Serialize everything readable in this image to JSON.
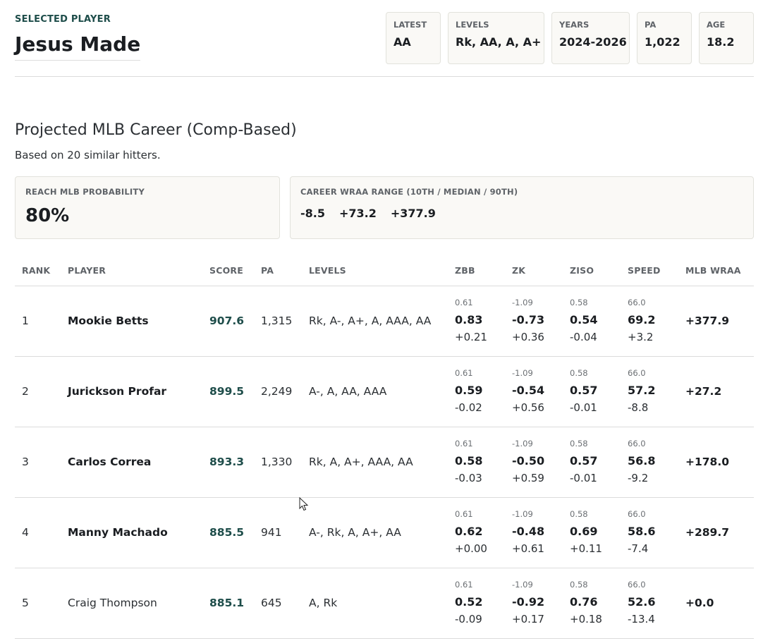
{
  "header": {
    "selected_label": "SELECTED PLAYER",
    "player_name": "Jesus Made",
    "stats": [
      {
        "key": "LATEST",
        "value": "AA"
      },
      {
        "key": "LEVELS",
        "value": "Rk, AA, A, A+"
      },
      {
        "key": "YEARS",
        "value": "2024-2026"
      },
      {
        "key": "PA",
        "value": "1,022"
      },
      {
        "key": "AGE",
        "value": "18.2"
      }
    ]
  },
  "projection": {
    "title": "Projected MLB Career (Comp-Based)",
    "subtitle": "Based on 20 similar hitters.",
    "reach_label": "REACH MLB PROBABILITY",
    "reach_value": "80%",
    "range_label": "CAREER WRAA RANGE (10TH / MEDIAN / 90TH)",
    "range_values": [
      "-8.5",
      "+73.2",
      "+377.9"
    ]
  },
  "table": {
    "columns": [
      "RANK",
      "PLAYER",
      "SCORE",
      "PA",
      "LEVELS",
      "ZBB",
      "ZK",
      "ZISO",
      "SPEED",
      "MLB WRAA"
    ],
    "baselines": {
      "zbb": "0.61",
      "zk": "-1.09",
      "ziso": "0.58",
      "speed": "66.0"
    },
    "rows": [
      {
        "rank": "1",
        "player": "Mookie Betts",
        "score": "907.6",
        "pa": "1,315",
        "levels": "Rk, A-, A+, A, AAA, AA",
        "zbb": "0.83",
        "zbb_diff": "+0.21",
        "zk": "-0.73",
        "zk_diff": "+0.36",
        "ziso": "0.54",
        "ziso_diff": "-0.04",
        "speed": "69.2",
        "speed_diff": "+3.2",
        "wraa": "+377.9"
      },
      {
        "rank": "2",
        "player": "Jurickson Profar",
        "score": "899.5",
        "pa": "2,249",
        "levels": "A-, A, AA, AAA",
        "zbb": "0.59",
        "zbb_diff": "-0.02",
        "zk": "-0.54",
        "zk_diff": "+0.56",
        "ziso": "0.57",
        "ziso_diff": "-0.01",
        "speed": "57.2",
        "speed_diff": "-8.8",
        "wraa": "+27.2"
      },
      {
        "rank": "3",
        "player": "Carlos Correa",
        "score": "893.3",
        "pa": "1,330",
        "levels": "Rk, A, A+, AAA, AA",
        "zbb": "0.58",
        "zbb_diff": "-0.03",
        "zk": "-0.50",
        "zk_diff": "+0.59",
        "ziso": "0.57",
        "ziso_diff": "-0.01",
        "speed": "56.8",
        "speed_diff": "-9.2",
        "wraa": "+178.0"
      },
      {
        "rank": "4",
        "player": "Manny Machado",
        "score": "885.5",
        "pa": "941",
        "levels": "A-, Rk, A, A+, AA",
        "zbb": "0.62",
        "zbb_diff": "+0.00",
        "zk": "-0.48",
        "zk_diff": "+0.61",
        "ziso": "0.69",
        "ziso_diff": "+0.11",
        "speed": "58.6",
        "speed_diff": "-7.4",
        "wraa": "+289.7"
      },
      {
        "rank": "5",
        "player": "Craig Thompson",
        "score": "885.1",
        "pa": "645",
        "levels": "A, Rk",
        "zbb": "0.52",
        "zbb_diff": "-0.09",
        "zk": "-0.92",
        "zk_diff": "+0.17",
        "ziso": "0.76",
        "ziso_diff": "+0.18",
        "speed": "52.6",
        "speed_diff": "-13.4",
        "wraa": "+0.0",
        "plain_name": true
      }
    ]
  },
  "colors": {
    "accent": "#1e4d4a",
    "card_bg": "#faf9f6",
    "border": "#dcdcdc"
  }
}
